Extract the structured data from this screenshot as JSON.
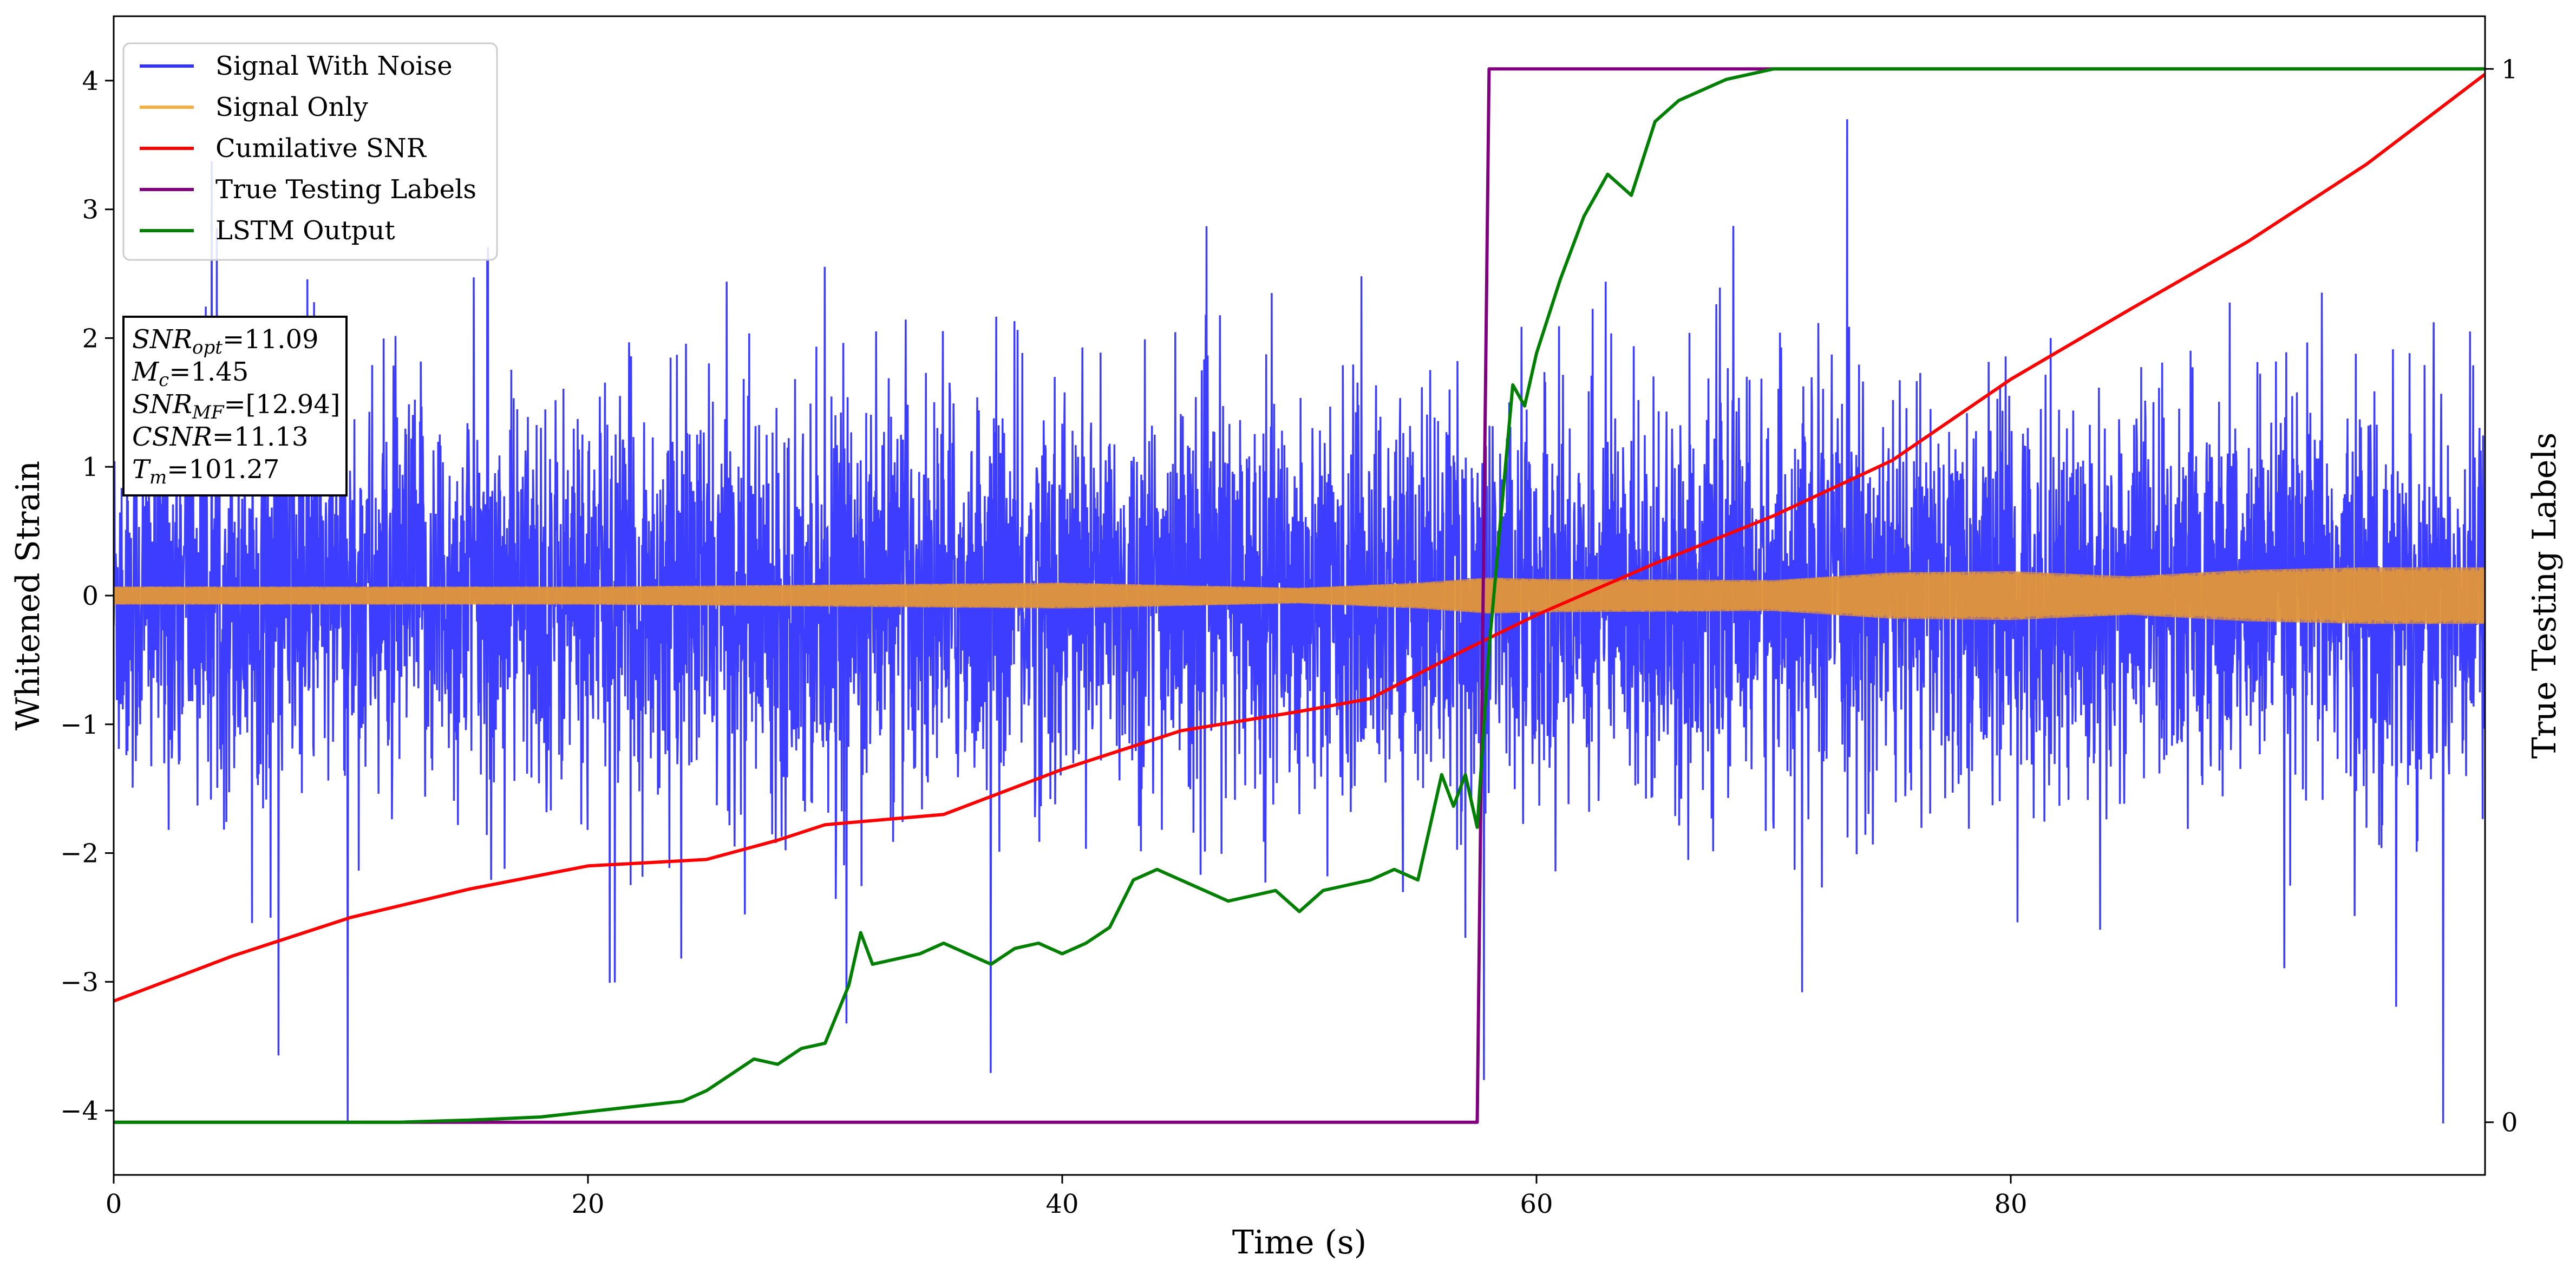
{
  "chart_data": {
    "type": "line",
    "xlabel": "Time (s)",
    "ylabel": "Whitened Strain",
    "y2label": "True Testing Labels",
    "xlim": [
      0,
      100
    ],
    "ylim": [
      -4.5,
      4.5
    ],
    "y2lim": [
      -0.05,
      1.05
    ],
    "x_ticks": [
      0,
      20,
      40,
      60,
      80
    ],
    "x_tick_labels": [
      "0",
      "20",
      "40",
      "60",
      "80"
    ],
    "y_ticks": [
      -4,
      -3,
      -2,
      -1,
      0,
      1,
      2,
      3,
      4
    ],
    "y_tick_labels": [
      "−4",
      "−3",
      "−2",
      "−1",
      "0",
      "1",
      "2",
      "3",
      "4"
    ],
    "y2_ticks": [
      0,
      1
    ],
    "y2_tick_labels": [
      "0",
      "1"
    ],
    "grid": false,
    "legend_position": "top-left",
    "stats_box": [
      {
        "sym": "SNR",
        "sub": "opt",
        "value": "=11.09"
      },
      {
        "sym": "M",
        "sub": "c",
        "value": "=1.45"
      },
      {
        "sym": "SNR",
        "sub": "MF",
        "value": "=[12.94]"
      },
      {
        "sym": "CSNR",
        "sub": "",
        "value": "=11.13"
      },
      {
        "sym": "T",
        "sub": "m",
        "value": "=101.27"
      }
    ],
    "series": [
      {
        "name": "Signal With Noise",
        "color": "#3333ff",
        "axis": "left",
        "style": "noise",
        "x_range": [
          0,
          100
        ],
        "typical_amplitude": 1.0,
        "peak_range": [
          -4.1,
          3.7
        ]
      },
      {
        "name": "Signal Only",
        "color": "#f5b041",
        "axis": "left",
        "style": "envelope",
        "x": [
          0,
          20,
          40,
          45,
          50,
          55,
          58,
          60,
          70,
          75,
          80,
          85,
          90,
          95,
          100
        ],
        "amplitude": [
          0.07,
          0.07,
          0.1,
          0.08,
          0.06,
          0.1,
          0.14,
          0.13,
          0.12,
          0.18,
          0.19,
          0.15,
          0.2,
          0.22,
          0.22
        ]
      },
      {
        "name": "Cumilative SNR",
        "color": "#ff0000",
        "axis": "left",
        "x": [
          0,
          5,
          10,
          15,
          20,
          25,
          28,
          30,
          35,
          40,
          45,
          50,
          53,
          57,
          60,
          65,
          70,
          75,
          80,
          85,
          90,
          95,
          100
        ],
        "y": [
          -3.15,
          -2.8,
          -2.5,
          -2.28,
          -2.1,
          -2.05,
          -1.9,
          -1.78,
          -1.7,
          -1.35,
          -1.05,
          -0.9,
          -0.8,
          -0.42,
          -0.15,
          0.25,
          0.62,
          1.05,
          1.68,
          2.22,
          2.75,
          3.35,
          4.05
        ]
      },
      {
        "name": "True Testing Labels",
        "color": "#800080",
        "axis": "right",
        "x": [
          0,
          57.5,
          58.0,
          100
        ],
        "y": [
          0,
          0,
          1,
          1
        ]
      },
      {
        "name": "LSTM Output",
        "color": "#008000",
        "axis": "right",
        "x": [
          0,
          12,
          15,
          18,
          20,
          22,
          24,
          25,
          26,
          27,
          28,
          29,
          30,
          31,
          31.5,
          32,
          33,
          34,
          35,
          36,
          37,
          38,
          39,
          40,
          41,
          42,
          43,
          44,
          45,
          46,
          47,
          48,
          49,
          50,
          51,
          52,
          53,
          54,
          55,
          56,
          56.5,
          57,
          57.5,
          58,
          59,
          59.5,
          60,
          61,
          62,
          63,
          64,
          65,
          66,
          68,
          70,
          72,
          74,
          80,
          100
        ],
        "y": [
          0,
          0,
          0.002,
          0.005,
          0.01,
          0.015,
          0.02,
          0.03,
          0.045,
          0.06,
          0.055,
          0.07,
          0.075,
          0.13,
          0.18,
          0.15,
          0.155,
          0.16,
          0.17,
          0.16,
          0.15,
          0.165,
          0.17,
          0.16,
          0.17,
          0.185,
          0.23,
          0.24,
          0.23,
          0.22,
          0.21,
          0.215,
          0.22,
          0.2,
          0.22,
          0.225,
          0.23,
          0.24,
          0.23,
          0.33,
          0.3,
          0.33,
          0.28,
          0.45,
          0.7,
          0.68,
          0.73,
          0.8,
          0.86,
          0.9,
          0.88,
          0.95,
          0.97,
          0.99,
          1.0,
          1.0,
          1.0,
          1.0,
          1.0
        ]
      }
    ]
  }
}
